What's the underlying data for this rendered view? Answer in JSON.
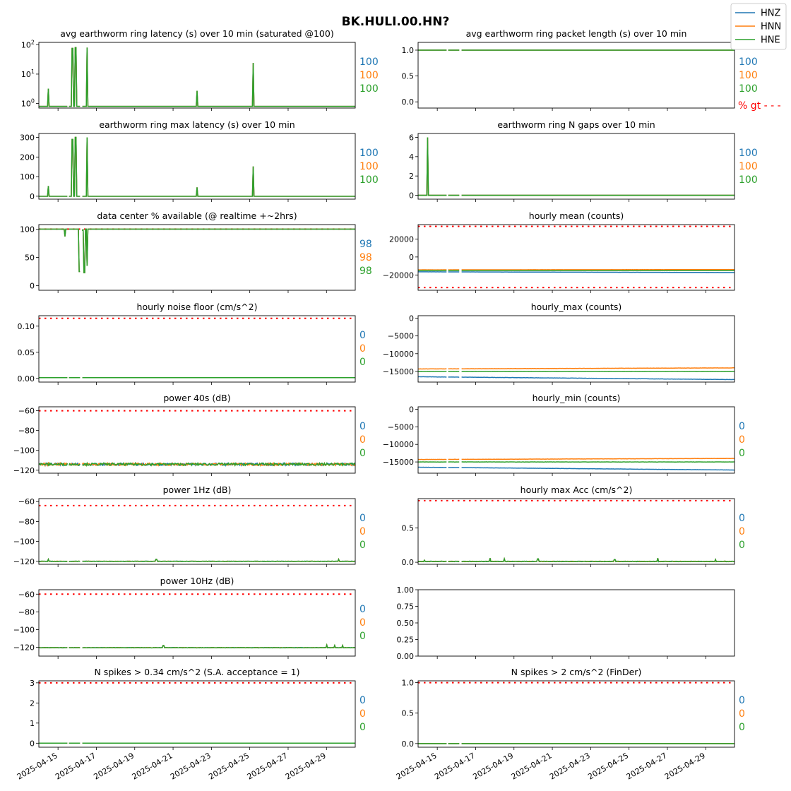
{
  "chart_data": {
    "type": "line",
    "title": "BK.HULI.00.HN?",
    "legend": {
      "placement": "top-right",
      "entries": [
        {
          "name": "HNZ",
          "color": "#1f77b4"
        },
        {
          "name": "HNN",
          "color": "#ff7f0e"
        },
        {
          "name": "HNE",
          "color": "#2ca02c"
        }
      ]
    },
    "threshold_style": {
      "color": "#ff0000",
      "label": "% gt - - -"
    },
    "x_date_labels": [
      "2025-04-15",
      "2025-04-17",
      "2025-04-19",
      "2025-04-21",
      "2025-04-23",
      "2025-04-25",
      "2025-04-27",
      "2025-04-29"
    ],
    "xlim": [
      "2025-04-14 00:00",
      "2025-04-30 12:00"
    ],
    "panels": [
      {
        "id": "latency_avg",
        "title": "avg earthworm ring latency (s)   over 10 min (saturated @100)",
        "type": "line",
        "yscale": "log",
        "ylim": [
          0.7,
          120
        ],
        "yticks": [
          {
            "v": 1,
            "b": "10",
            "e": "0"
          },
          {
            "v": 10,
            "b": "10",
            "e": "1"
          },
          {
            "v": 100,
            "b": "10",
            "e": "2"
          }
        ],
        "baseline": 0.8,
        "spikes": [
          {
            "t": "2025-04-14 12:00",
            "v": 3.2
          },
          {
            "t": "2025-04-15 13:00",
            "v": 32
          },
          {
            "t": "2025-04-15 18:00",
            "v": 75
          },
          {
            "t": "2025-04-15 22:00",
            "v": 80
          },
          {
            "t": "2025-04-16 12:00",
            "v": 80
          },
          {
            "t": "2025-04-22 06:00",
            "v": 2.7
          },
          {
            "t": "2025-04-25 04:00",
            "v": 24
          }
        ],
        "percent": [
          "100",
          "100",
          "100"
        ]
      },
      {
        "id": "packet_length",
        "title": "avg earthworm ring packet length (s)   over 10 min",
        "type": "line",
        "ylim": [
          -0.12,
          1.15
        ],
        "yticks": [
          {
            "v": 0.0,
            "l": "0.0"
          },
          {
            "v": 0.5,
            "l": "0.5"
          },
          {
            "v": 1.0,
            "l": "1.0"
          }
        ],
        "baseline": 1.0,
        "spikes": [],
        "percent": [
          "100",
          "100",
          "100"
        ],
        "gt_label": true
      },
      {
        "id": "latency_max",
        "title": "earthworm ring max latency (s)   over 10 min",
        "type": "line",
        "ylim": [
          -15,
          320
        ],
        "yticks": [
          {
            "v": 0,
            "l": "0"
          },
          {
            "v": 100,
            "l": "100"
          },
          {
            "v": 200,
            "l": "200"
          },
          {
            "v": 300,
            "l": "300"
          }
        ],
        "baseline": 0,
        "spikes": [
          {
            "t": "2025-04-14 12:00",
            "v": 52
          },
          {
            "t": "2025-04-15 13:00",
            "v": 185
          },
          {
            "t": "2025-04-15 18:00",
            "v": 290
          },
          {
            "t": "2025-04-15 22:00",
            "v": 300
          },
          {
            "t": "2025-04-16 12:00",
            "v": 300
          },
          {
            "t": "2025-04-22 06:00",
            "v": 45
          },
          {
            "t": "2025-04-25 04:00",
            "v": 152
          }
        ],
        "percent": [
          "100",
          "100",
          "100"
        ]
      },
      {
        "id": "n_gaps",
        "title": "earthworm ring N gaps   over 10 min",
        "type": "line",
        "ylim": [
          -0.4,
          6.4
        ],
        "yticks": [
          {
            "v": 0,
            "l": "0"
          },
          {
            "v": 2,
            "l": "2"
          },
          {
            "v": 4,
            "l": "4"
          },
          {
            "v": 6,
            "l": "6"
          }
        ],
        "baseline": 0,
        "spikes": [
          {
            "t": "2025-04-14 12:00",
            "v": 6
          },
          {
            "t": "2025-04-15 13:00",
            "v": 6
          }
        ],
        "percent": [
          "100",
          "100",
          "100"
        ]
      },
      {
        "id": "availability",
        "title": "data center % available (@ realtime +~2hrs)",
        "type": "line",
        "ylim": [
          -8,
          108
        ],
        "yticks": [
          {
            "v": 0,
            "l": "0"
          },
          {
            "v": 50,
            "l": "50"
          },
          {
            "v": 100,
            "l": "100"
          }
        ],
        "baseline": 100,
        "dips": [
          {
            "t": "2025-04-15 09:00",
            "v": 87
          },
          {
            "t": "2025-04-16 03:00",
            "v": 25
          },
          {
            "t": "2025-04-16 06:00",
            "v": 97
          },
          {
            "t": "2025-04-16 09:00",
            "v": 23
          },
          {
            "t": "2025-04-16 12:00",
            "v": 35
          }
        ],
        "threshold": [
          100
        ],
        "percent": [
          "98",
          "98",
          "98"
        ]
      },
      {
        "id": "hourly_mean",
        "title": "hourly mean (counts)",
        "type": "line",
        "ylim": [
          -37000,
          36000
        ],
        "yticks": [
          {
            "v": -20000,
            "l": "−20000"
          },
          {
            "v": 0,
            "l": "0"
          },
          {
            "v": 20000,
            "l": "20000"
          }
        ],
        "series": [
          {
            "start": -16500,
            "end": -17300
          },
          {
            "start": -14300,
            "end": -14000
          },
          {
            "start": -15000,
            "end": -15000
          }
        ],
        "threshold": [
          34000,
          -34000
        ],
        "percent": []
      },
      {
        "id": "noise_floor",
        "title": "hourly noise floor (cm/s^2)",
        "type": "line",
        "ylim": [
          -0.007,
          0.12
        ],
        "yticks": [
          {
            "v": 0.0,
            "l": "0.00"
          },
          {
            "v": 0.05,
            "l": "0.05"
          },
          {
            "v": 0.1,
            "l": "0.10"
          }
        ],
        "baseline": 0.0015,
        "threshold": [
          0.115
        ],
        "percent": [
          "0",
          "0",
          "0"
        ]
      },
      {
        "id": "hourly_max",
        "title": "hourly_max (counts)",
        "type": "line",
        "ylim": [
          -18000,
          700
        ],
        "yticks": [
          {
            "v": -15000,
            "l": "−15000"
          },
          {
            "v": -10000,
            "l": "−10000"
          },
          {
            "v": -5000,
            "l": "−5000"
          },
          {
            "v": 0,
            "l": "0"
          }
        ],
        "series": [
          {
            "start": -16500,
            "end": -17300
          },
          {
            "start": -14300,
            "end": -14000
          },
          {
            "start": -15000,
            "end": -15000
          }
        ],
        "percent": []
      },
      {
        "id": "power_40s",
        "title": "power 40s (dB)",
        "type": "line",
        "ylim": [
          -123,
          -56
        ],
        "yticks": [
          {
            "v": -120,
            "l": "−120"
          },
          {
            "v": -100,
            "l": "−100"
          },
          {
            "v": -80,
            "l": "−80"
          },
          {
            "v": -60,
            "l": "−60"
          }
        ],
        "baseline": -114,
        "noise": 1.2,
        "threshold": [
          -60
        ],
        "percent": [
          "0",
          "0",
          "0"
        ]
      },
      {
        "id": "hourly_min",
        "title": "hourly_min (counts)",
        "type": "line",
        "ylim": [
          -18200,
          700
        ],
        "yticks": [
          {
            "v": -15000,
            "l": "−15000"
          },
          {
            "v": -10000,
            "l": "−10000"
          },
          {
            "v": -5000,
            "l": "−5000"
          },
          {
            "v": 0,
            "l": "0"
          }
        ],
        "series": [
          {
            "start": -16500,
            "end": -17300
          },
          {
            "start": -14300,
            "end": -14000
          },
          {
            "start": -15000,
            "end": -15000
          }
        ],
        "percent": [
          "0",
          "0",
          "0"
        ]
      },
      {
        "id": "power_1hz",
        "title": "power 1Hz (dB)",
        "type": "line",
        "ylim": [
          -123,
          -57
        ],
        "yticks": [
          {
            "v": -120,
            "l": "−120"
          },
          {
            "v": -100,
            "l": "−100"
          },
          {
            "v": -80,
            "l": "−80"
          },
          {
            "v": -60,
            "l": "−60"
          }
        ],
        "baseline": -120,
        "noise": 0.2,
        "threshold": [
          -64
        ],
        "spikes": [
          {
            "t": "2025-04-14 12:00",
            "v": -118
          },
          {
            "t": "2025-04-20 03:00",
            "v": -118
          },
          {
            "t": "2025-04-29 15:00",
            "v": -118
          }
        ],
        "percent": [
          "0",
          "0",
          "0"
        ]
      },
      {
        "id": "max_acc",
        "title": "hourly max Acc (cm/s^2)",
        "type": "line",
        "ylim": [
          -0.03,
          0.93
        ],
        "yticks": [
          {
            "v": 0.0,
            "l": "0.0"
          },
          {
            "v": 0.5,
            "l": "0.5"
          }
        ],
        "baseline": 0.012,
        "noise": 0.004,
        "threshold": [
          0.9
        ],
        "spikes": [
          {
            "t": "2025-04-14 08:00",
            "v": 0.03
          },
          {
            "t": "2025-04-17 18:00",
            "v": 0.06
          },
          {
            "t": "2025-04-18 12:00",
            "v": 0.05
          },
          {
            "t": "2025-04-20 06:00",
            "v": 0.05
          },
          {
            "t": "2025-04-24 06:00",
            "v": 0.04
          },
          {
            "t": "2025-04-26 12:00",
            "v": 0.06
          },
          {
            "t": "2025-04-29 12:00",
            "v": 0.04
          }
        ],
        "percent": [
          "0",
          "0",
          "0"
        ]
      },
      {
        "id": "power_10hz",
        "title": "power 10Hz (dB)",
        "type": "line",
        "ylim": [
          -130,
          -55
        ],
        "yticks": [
          {
            "v": -120,
            "l": "−120"
          },
          {
            "v": -100,
            "l": "−100"
          },
          {
            "v": -80,
            "l": "−80"
          },
          {
            "v": -60,
            "l": "−60"
          }
        ],
        "baseline": -120.5,
        "noise": 0.2,
        "threshold": [
          -60
        ],
        "spikes": [
          {
            "t": "2025-04-20 12:00",
            "v": -118
          },
          {
            "t": "2025-04-29 00:00",
            "v": -117.5
          },
          {
            "t": "2025-04-29 10:00",
            "v": -118
          },
          {
            "t": "2025-04-29 20:00",
            "v": -118
          }
        ],
        "percent": [
          "0",
          "0",
          "0"
        ]
      },
      {
        "id": "empty",
        "title": "",
        "type": "empty",
        "ylim": [
          0,
          1
        ],
        "yticks": [
          {
            "v": 0.0,
            "l": "0.00"
          },
          {
            "v": 0.25,
            "l": "0.25"
          },
          {
            "v": 0.5,
            "l": "0.50"
          },
          {
            "v": 0.75,
            "l": "0.75"
          },
          {
            "v": 1.0,
            "l": "1.00"
          }
        ],
        "percent": []
      },
      {
        "id": "spikes_034",
        "title": "N spikes > 0.34 cm/s^2 (S.A. acceptance = 1)",
        "type": "line",
        "ylim": [
          -0.2,
          3.1
        ],
        "yticks": [
          {
            "v": 0,
            "l": "0"
          },
          {
            "v": 1,
            "l": "1"
          },
          {
            "v": 2,
            "l": "2"
          },
          {
            "v": 3,
            "l": "3"
          }
        ],
        "baseline": 0,
        "threshold": [
          3
        ],
        "percent": [
          "0",
          "0",
          "0"
        ],
        "date_axis": true
      },
      {
        "id": "spikes_2",
        "title": "N spikes > 2 cm/s^2 (FinDer)",
        "type": "line",
        "ylim": [
          -0.06,
          1.03
        ],
        "yticks": [
          {
            "v": 0.0,
            "l": "0.0"
          },
          {
            "v": 0.5,
            "l": "0.5"
          },
          {
            "v": 1.0,
            "l": "1.0"
          }
        ],
        "baseline": 0,
        "threshold": [
          1
        ],
        "percent": [
          "0",
          "0",
          "0"
        ],
        "date_axis": true
      }
    ]
  }
}
